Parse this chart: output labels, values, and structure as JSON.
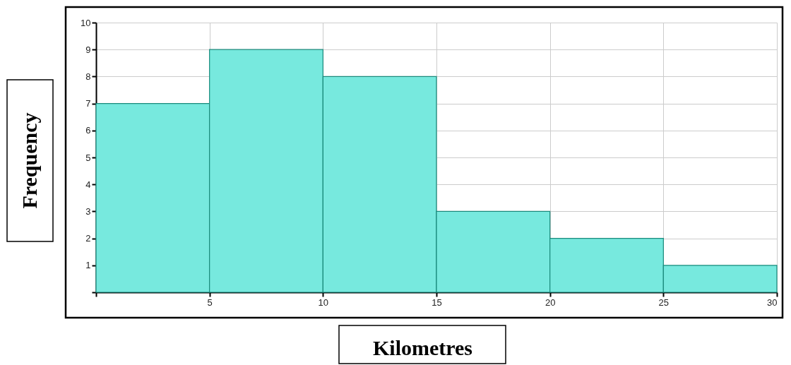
{
  "chart_data": {
    "type": "histogram",
    "xlabel": "Kilometres",
    "ylabel": "Frequency",
    "bins": [
      0,
      5,
      10,
      15,
      20,
      25,
      30
    ],
    "values": [
      7,
      9,
      8,
      3,
      2,
      1
    ],
    "color": "#77e9de",
    "xlim": [
      0,
      30
    ],
    "ylim": [
      0,
      10
    ],
    "xticks": [
      {
        "value": 0,
        "label": null
      },
      5,
      10,
      15,
      20,
      25,
      30
    ],
    "yticks": [
      {
        "value": 0,
        "label": null
      },
      1,
      2,
      3,
      4,
      5,
      6,
      7,
      8,
      9,
      10
    ],
    "grid": true
  }
}
